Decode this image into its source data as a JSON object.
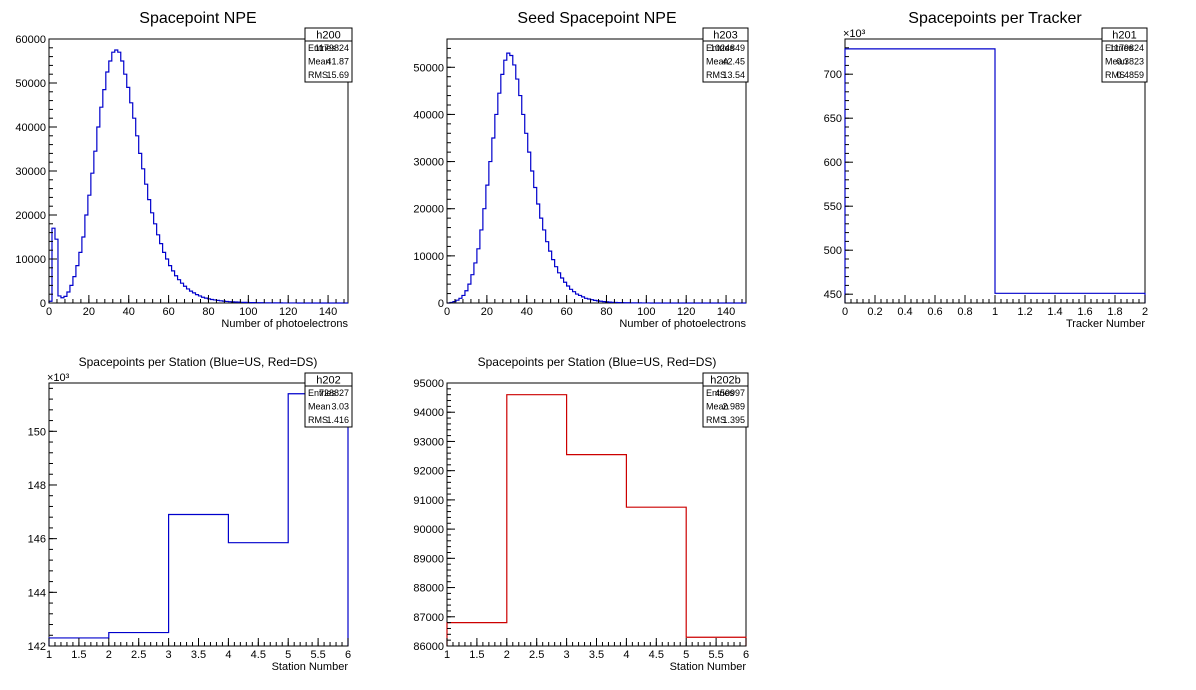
{
  "chart_data": [
    {
      "id": "h200",
      "type": "histogram",
      "title": "Spacepoint NPE",
      "xlabel": "Number of photoelectrons",
      "ylabel": "",
      "xlim": [
        0,
        150
      ],
      "ylim": [
        0,
        60000
      ],
      "xticks": [
        0,
        20,
        40,
        60,
        80,
        100,
        120,
        140
      ],
      "yticks": [
        0,
        10000,
        20000,
        30000,
        40000,
        50000,
        60000
      ],
      "ytick_labels": [
        "0",
        "10000",
        "20000",
        "30000",
        "40000",
        "50000",
        "60000"
      ],
      "exponent_label": "",
      "line_color": "#0000cc",
      "bin_width": 1.5,
      "values": [
        400,
        17000,
        14500,
        1600,
        1200,
        1500,
        2500,
        4000,
        6000,
        8500,
        11500,
        15000,
        20000,
        24500,
        29500,
        34500,
        40000,
        44500,
        48500,
        52500,
        55000,
        57000,
        57500,
        57000,
        55000,
        52000,
        49000,
        45500,
        42000,
        38000,
        34000,
        30500,
        27000,
        23500,
        20500,
        18000,
        15500,
        13500,
        11500,
        10000,
        8500,
        7300,
        6200,
        5300,
        4500,
        3800,
        3200,
        2700,
        2300,
        1900,
        1600,
        1300,
        1100,
        950,
        800,
        700,
        600,
        500,
        420,
        360,
        300,
        260,
        220,
        190,
        160,
        140,
        120,
        100,
        85,
        75,
        65,
        55,
        45,
        40,
        35,
        30,
        25,
        20,
        18,
        15,
        12,
        10,
        8,
        6,
        5,
        4,
        3,
        2,
        2,
        1,
        1,
        1,
        1,
        0,
        0,
        0,
        0,
        0,
        0,
        0
      ],
      "stats": {
        "name": "h200",
        "entries_label": "Entries",
        "entries": "1179824",
        "mean_label": "Mean",
        "mean": "41.87",
        "rms_label": "RMS",
        "rms": "15.69"
      }
    },
    {
      "id": "h203",
      "type": "histogram",
      "title": "Seed Spacepoint NPE",
      "xlabel": "Number of photoelectrons",
      "ylabel": "",
      "xlim": [
        0,
        150
      ],
      "ylim": [
        0,
        56000
      ],
      "xticks": [
        0,
        20,
        40,
        60,
        80,
        100,
        120,
        140
      ],
      "yticks": [
        0,
        10000,
        20000,
        30000,
        40000,
        50000
      ],
      "ytick_labels": [
        "0",
        "10000",
        "20000",
        "30000",
        "40000",
        "50000"
      ],
      "exponent_label": "",
      "line_color": "#0000cc",
      "bin_width": 1.5,
      "values": [
        0,
        100,
        300,
        600,
        1000,
        1600,
        2600,
        4000,
        6000,
        8500,
        11500,
        15500,
        20000,
        25000,
        30000,
        35000,
        40000,
        44500,
        48500,
        51500,
        53000,
        52500,
        50500,
        47500,
        44000,
        40000,
        36000,
        32000,
        28000,
        24500,
        21000,
        18000,
        15500,
        13000,
        11000,
        9200,
        7700,
        6400,
        5300,
        4400,
        3600,
        2900,
        2400,
        1900,
        1600,
        1300,
        1000,
        850,
        700,
        560,
        450,
        370,
        300,
        240,
        190,
        150,
        120,
        95,
        75,
        60,
        48,
        38,
        30,
        24,
        19,
        15,
        12,
        9,
        7,
        5,
        4,
        3,
        2,
        2,
        1,
        1,
        1,
        0,
        0,
        0,
        0,
        0,
        0,
        0,
        0,
        0,
        0,
        0,
        0,
        0,
        0,
        0,
        0,
        0,
        0,
        0,
        0,
        0,
        0,
        0
      ],
      "stats": {
        "name": "h203",
        "entries_label": "Entries",
        "entries": "1024849",
        "mean_label": "Mean",
        "mean": "42.45",
        "rms_label": "RMS",
        "rms": "13.54"
      }
    },
    {
      "id": "h201",
      "type": "histogram",
      "title": "Spacepoints per Tracker",
      "xlabel": "Tracker Number",
      "ylabel": "",
      "xlim": [
        0,
        2
      ],
      "ylim": [
        440,
        740
      ],
      "xticks": [
        0,
        0.2,
        0.4,
        0.6,
        0.8,
        1,
        1.2,
        1.4,
        1.6,
        1.8,
        2
      ],
      "xtick_labels": [
        "0",
        "0.2",
        "0.4",
        "0.6",
        "0.8",
        "1",
        "1.2",
        "1.4",
        "1.6",
        "1.8",
        "2"
      ],
      "yticks": [
        450,
        500,
        550,
        600,
        650,
        700
      ],
      "ytick_labels": [
        "450",
        "500",
        "550",
        "600",
        "650",
        "700"
      ],
      "exponent_label": "×10³",
      "line_color": "#0000cc",
      "bin_edges": [
        0,
        1,
        2
      ],
      "values": [
        728.8,
        451.0
      ],
      "stats": {
        "name": "h201",
        "entries_label": "Entries",
        "entries": "1179824",
        "mean_label": "Mean",
        "mean": "0.3823",
        "rms_label": "RMS",
        "rms": "0.4859"
      }
    },
    {
      "id": "h202",
      "type": "histogram",
      "title": "Spacepoints per Station (Blue=US, Red=DS)",
      "xlabel": "Station Number",
      "ylabel": "",
      "xlim": [
        1,
        6
      ],
      "ylim": [
        142,
        151.8
      ],
      "xticks": [
        1,
        1.5,
        2,
        2.5,
        3,
        3.5,
        4,
        4.5,
        5,
        5.5,
        6
      ],
      "xtick_labels": [
        "1",
        "1.5",
        "2",
        "2.5",
        "3",
        "3.5",
        "4",
        "4.5",
        "5",
        "5.5",
        "6"
      ],
      "yticks": [
        142,
        144,
        146,
        148,
        150
      ],
      "ytick_labels": [
        "142",
        "144",
        "146",
        "148",
        "150"
      ],
      "exponent_label": "×10³",
      "line_color": "#0000cc",
      "bin_edges": [
        1,
        2,
        3,
        4,
        5,
        6
      ],
      "values": [
        142.3,
        142.5,
        146.9,
        145.85,
        151.4
      ],
      "stats": {
        "name": "h202",
        "entries_label": "Entries",
        "entries": "728827",
        "mean_label": "Mean",
        "mean": "3.03",
        "rms_label": "RMS",
        "rms": "1.416"
      }
    },
    {
      "id": "h202b",
      "type": "histogram",
      "title": "Spacepoints per Station (Blue=US, Red=DS)",
      "xlabel": "Station Number",
      "ylabel": "",
      "xlim": [
        1,
        6
      ],
      "ylim": [
        86000,
        95000
      ],
      "xticks": [
        1,
        1.5,
        2,
        2.5,
        3,
        3.5,
        4,
        4.5,
        5,
        5.5,
        6
      ],
      "xtick_labels": [
        "1",
        "1.5",
        "2",
        "2.5",
        "3",
        "3.5",
        "4",
        "4.5",
        "5",
        "5.5",
        "6"
      ],
      "yticks": [
        86000,
        87000,
        88000,
        89000,
        90000,
        91000,
        92000,
        93000,
        94000,
        95000
      ],
      "ytick_labels": [
        "86000",
        "87000",
        "88000",
        "89000",
        "90000",
        "91000",
        "92000",
        "93000",
        "94000",
        "95000"
      ],
      "exponent_label": "",
      "line_color": "#cc0000",
      "bin_edges": [
        1,
        2,
        3,
        4,
        5,
        6
      ],
      "values": [
        86800,
        94600,
        92550,
        90750,
        86300
      ],
      "stats": {
        "name": "h202b",
        "entries_label": "Entries",
        "entries": "450997",
        "mean_label": "Mean",
        "mean": "2.989",
        "rms_label": "RMS",
        "rms": "1.395"
      }
    }
  ]
}
